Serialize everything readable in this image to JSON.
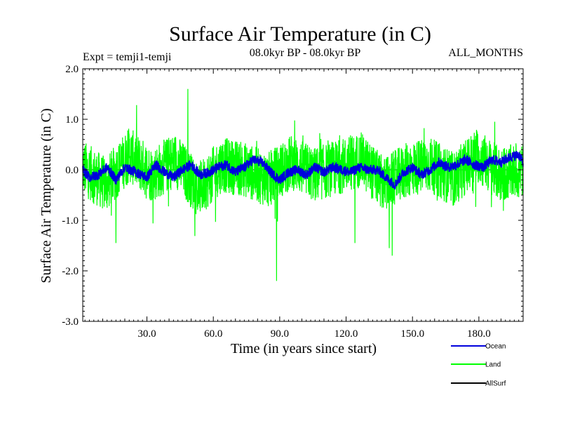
{
  "chart_data": {
    "type": "line",
    "title": "Surface Air Temperature (in C)",
    "subtitle": "08.0kyr BP - 08.0kyr BP",
    "left_note": "Expt = temji1-temji",
    "right_note": "ALL_MONTHS",
    "xlabel": "Time (in years since start)",
    "ylabel": "Surface Air Temperature (in C)",
    "xlim": [
      1,
      200
    ],
    "ylim": [
      -3.0,
      2.0
    ],
    "xticks": [
      30,
      60,
      90,
      120,
      150,
      180
    ],
    "xtick_labels": [
      "30.0",
      "60.0",
      "90.0",
      "120.0",
      "150.0",
      "180.0"
    ],
    "yticks": [
      2.0,
      1.0,
      0.0,
      -1.0,
      -2.0,
      -3.0
    ],
    "ytick_labels": [
      "2.0",
      "1.0",
      "0.0",
      "-1.0",
      "-2.0",
      "-3.0"
    ],
    "zero_line": 0.0,
    "series_samples_per_year": 12,
    "series": [
      {
        "name": "Land",
        "color": "#00ff00",
        "generated": true,
        "noise_amplitude": 0.55,
        "annual_keypoints": [
          0.05,
          -0.3,
          0.3,
          -0.1,
          0.2,
          -0.4,
          0.1,
          0.0,
          -0.2,
          0.15,
          -0.1,
          0.05,
          0.2,
          -0.3,
          0.0,
          0.1,
          -0.2,
          0.3,
          -0.1,
          0.0
        ],
        "spikes": [
          [
            48.5,
            1.6
          ],
          [
            88.6,
            -2.2
          ],
          [
            140.8,
            -1.7
          ],
          [
            139.5,
            -1.55
          ],
          [
            124.0,
            -1.45
          ],
          [
            16.0,
            -1.45
          ]
        ]
      },
      {
        "name": "Ocean",
        "color": "#0000dd",
        "keypoints_x": [
          1,
          4,
          8,
          12,
          16,
          20,
          25,
          30,
          34,
          38,
          42,
          46,
          50,
          54,
          58,
          62,
          66,
          70,
          74,
          78,
          82,
          86,
          90,
          94,
          98,
          102,
          106,
          110,
          114,
          118,
          122,
          126,
          130,
          134,
          138,
          142,
          146,
          150,
          154,
          158,
          162,
          166,
          170,
          174,
          178,
          182,
          186,
          190,
          194,
          198,
          200
        ],
        "keypoints_y": [
          0.0,
          -0.15,
          -0.1,
          0.05,
          -0.2,
          0.05,
          -0.05,
          -0.15,
          0.1,
          -0.05,
          -0.15,
          0.0,
          0.1,
          -0.1,
          -0.05,
          0.05,
          0.1,
          -0.05,
          0.05,
          0.2,
          0.15,
          -0.05,
          -0.2,
          -0.05,
          0.0,
          -0.1,
          0.05,
          -0.05,
          0.05,
          0.0,
          -0.05,
          0.05,
          0.0,
          0.0,
          -0.15,
          -0.3,
          -0.05,
          0.05,
          -0.1,
          0.0,
          0.15,
          0.05,
          0.1,
          0.2,
          0.1,
          0.05,
          0.2,
          0.15,
          0.25,
          0.3,
          0.15
        ],
        "noise_amplitude": 0.1
      },
      {
        "name": "AllSurf",
        "color": "#000000"
      }
    ],
    "legend": [
      "Ocean",
      "Land",
      "AllSurf"
    ],
    "legend_position": "bottom-right"
  }
}
